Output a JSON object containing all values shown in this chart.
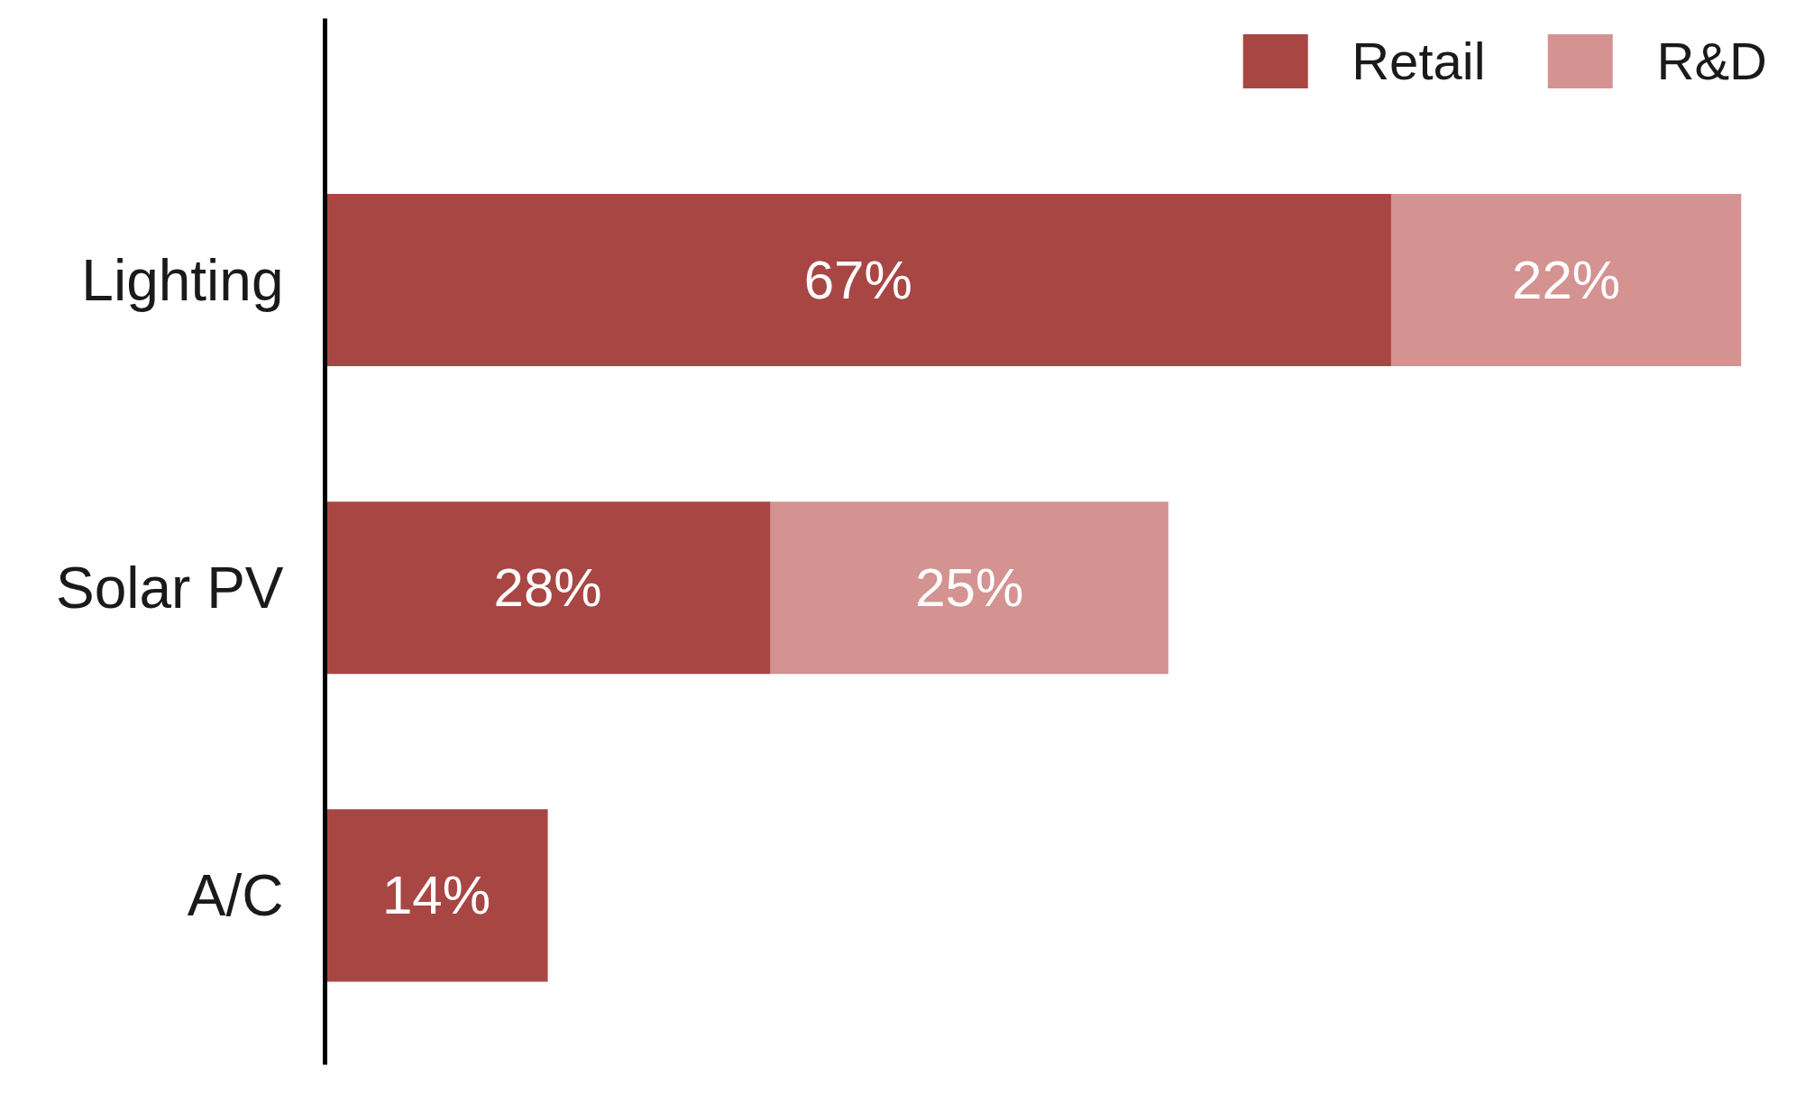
{
  "chart_data": {
    "type": "bar",
    "orientation": "horizontal",
    "stacked": true,
    "categories": [
      "Lighting",
      "Solar PV",
      "A/C"
    ],
    "series": [
      {
        "name": "Retail",
        "color": "#a84644",
        "values": [
          67,
          28,
          14
        ],
        "value_labels": [
          "67%",
          "28%",
          "14%"
        ]
      },
      {
        "name": "R&D",
        "color": "#d49291",
        "values": [
          22,
          25,
          null
        ],
        "value_labels": [
          "22%",
          "25%",
          null
        ]
      }
    ],
    "legend": "top right",
    "grid": false
  }
}
